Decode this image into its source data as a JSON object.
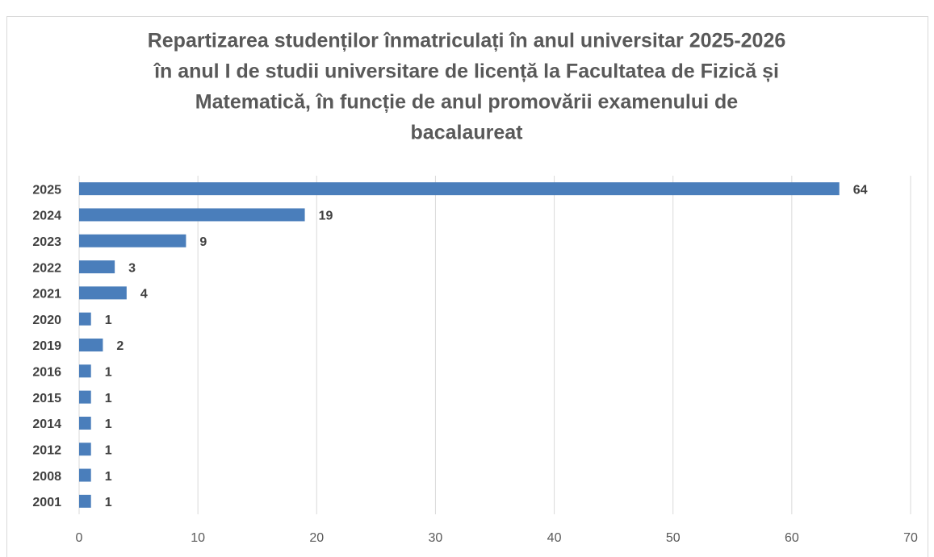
{
  "chart_data": {
    "type": "bar",
    "orientation": "horizontal",
    "title": [
      "Repartizarea studenților înmatriculați în anul universitar 2025-2026",
      "în anul I de studii universitare de licență la Facultatea de Fizică și",
      "Matematică, în funcție de anul promovării examenului de",
      "bacalaureat"
    ],
    "categories": [
      "2025",
      "2024",
      "2023",
      "2022",
      "2021",
      "2020",
      "2019",
      "2016",
      "2015",
      "2014",
      "2012",
      "2008",
      "2001"
    ],
    "values": [
      64,
      19,
      9,
      3,
      4,
      1,
      2,
      1,
      1,
      1,
      1,
      1,
      1
    ],
    "color": "#4a7ebb",
    "xlim": [
      0,
      70
    ],
    "xticks": [
      0,
      10,
      20,
      30,
      40,
      50,
      60,
      70
    ],
    "grid": true
  }
}
